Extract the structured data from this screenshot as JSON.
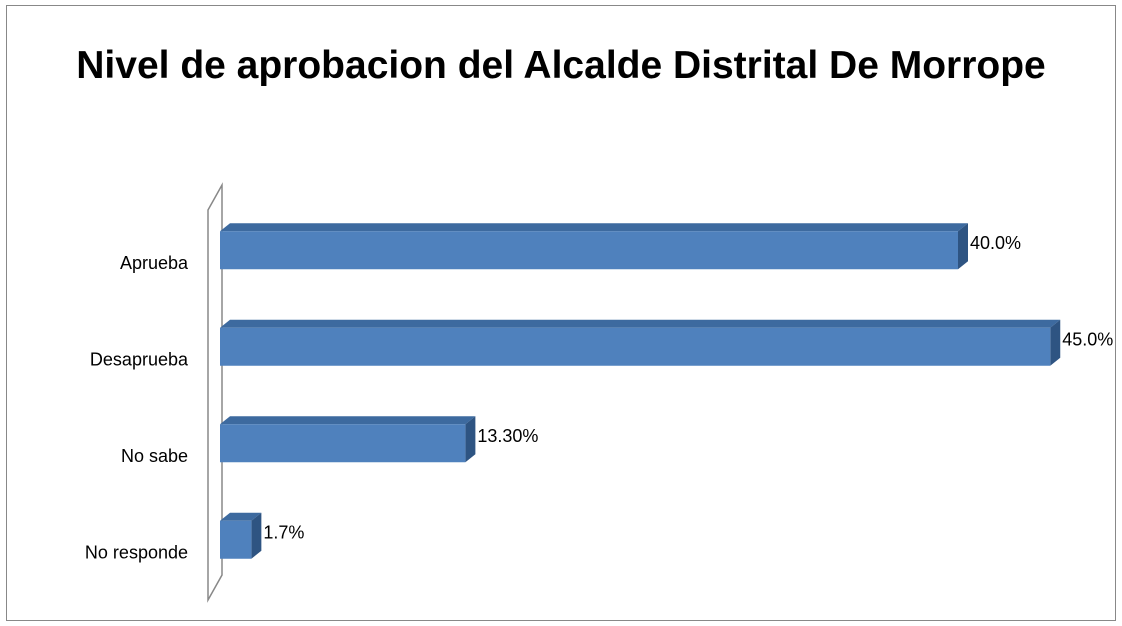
{
  "chart_data": {
    "type": "bar3d",
    "orientation": "horizontal",
    "title": "Nivel de aprobacion del Alcalde Distrital De Morrope",
    "categories": [
      "Aprueba",
      "Desaprueba",
      "No sabe",
      "No responde"
    ],
    "values": [
      40,
      45,
      13.3,
      1.7
    ],
    "value_labels": [
      "40.0%",
      "45.0%",
      "13.30%",
      "1.7%"
    ],
    "color": "#4f81bd"
  }
}
